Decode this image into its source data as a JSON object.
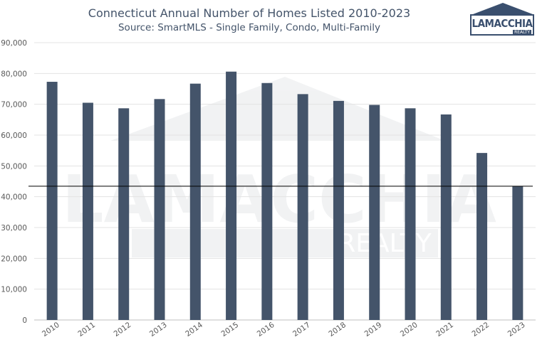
{
  "header": {
    "title": "Connecticut Annual Number of Homes Listed 2010-2023",
    "subtitle": "Source: SmartMLS - Single Family, Condo, Multi-Family"
  },
  "logo": {
    "name": "LAMACCHIA",
    "sub": "REALTY",
    "color": "#3a4f6e"
  },
  "watermark": {
    "name": "LAMACCHIA",
    "sub": "REALTY"
  },
  "chart_data": {
    "type": "bar",
    "title": "Connecticut Annual Number of Homes Listed 2010-2023",
    "subtitle": "Source: SmartMLS - Single Family, Condo, Multi-Family",
    "categories": [
      "2010",
      "2011",
      "2012",
      "2013",
      "2014",
      "2015",
      "2016",
      "2017",
      "2018",
      "2019",
      "2020",
      "2021",
      "2022",
      "2023"
    ],
    "values": [
      77300,
      70500,
      68700,
      71700,
      76700,
      80600,
      76900,
      73300,
      71100,
      69800,
      68700,
      66700,
      54200,
      43400
    ],
    "ylim": [
      0,
      90000
    ],
    "yticks": [
      0,
      10000,
      20000,
      30000,
      40000,
      50000,
      60000,
      70000,
      80000,
      90000
    ],
    "ytick_labels": [
      "0",
      "10,000",
      "20,000",
      "30,000",
      "40,000",
      "50,000",
      "60,000",
      "70,000",
      "80,000",
      "90,000"
    ],
    "reference_line": 43400,
    "bar_color": "#44546a",
    "grid": true,
    "legend": "none"
  }
}
